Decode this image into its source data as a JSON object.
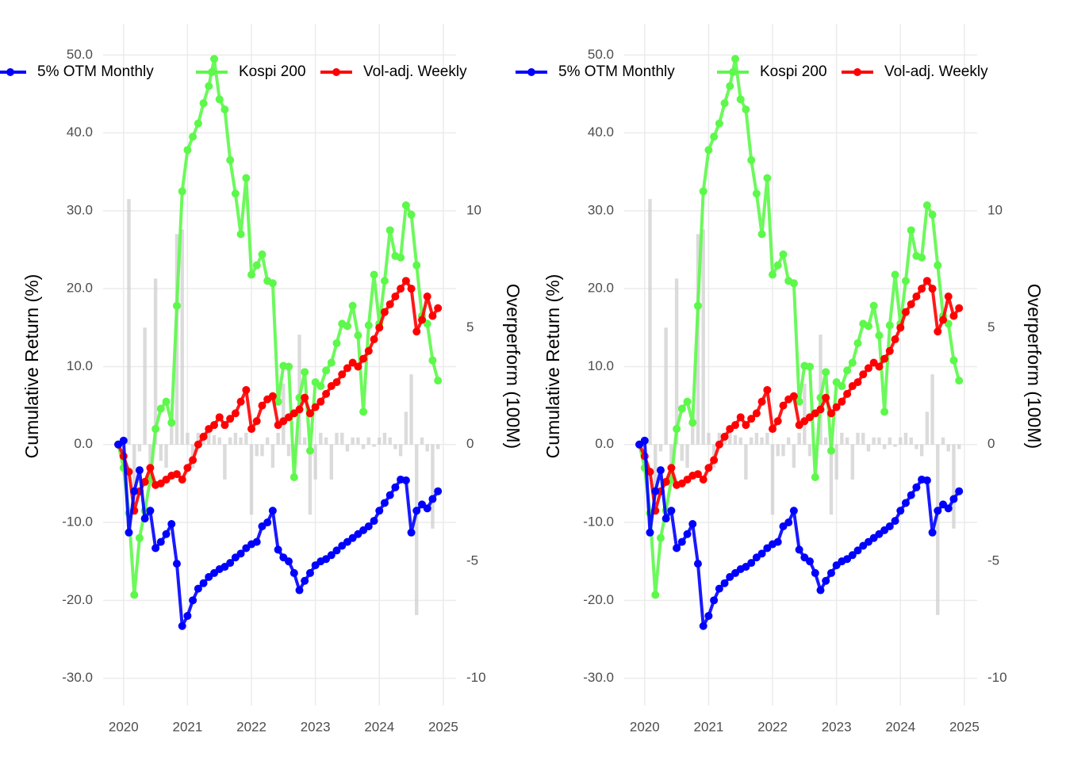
{
  "chart_data": [
    {
      "type": "line",
      "y_label": "Cumulative Return (%)",
      "y2_label": "Overperform (100M)",
      "x": [
        2019.917,
        2020.0,
        2020.083,
        2020.167,
        2020.25,
        2020.333,
        2020.417,
        2020.5,
        2020.583,
        2020.667,
        2020.75,
        2020.833,
        2020.917,
        2021.0,
        2021.083,
        2021.167,
        2021.25,
        2021.333,
        2021.417,
        2021.5,
        2021.583,
        2021.667,
        2021.75,
        2021.833,
        2021.917,
        2022.0,
        2022.083,
        2022.167,
        2022.25,
        2022.333,
        2022.417,
        2022.5,
        2022.583,
        2022.667,
        2022.75,
        2022.833,
        2022.917,
        2023.0,
        2023.083,
        2023.167,
        2023.25,
        2023.333,
        2023.417,
        2023.5,
        2023.583,
        2023.667,
        2023.75,
        2023.833,
        2023.917,
        2024.0,
        2024.083,
        2024.167,
        2024.25,
        2024.333,
        2024.417,
        2024.5,
        2024.583,
        2024.667,
        2024.75,
        2024.833,
        2024.917
      ],
      "series": [
        {
          "name": "5% OTM Monthly",
          "color": "#0000ff",
          "values": [
            0,
            0.5,
            -11.3,
            -6,
            -3.3,
            -9.5,
            -8.5,
            -13.3,
            -12.5,
            -11.5,
            -10.2,
            -15.3,
            -23.3,
            -22,
            -20,
            -18.5,
            -17.8,
            -17,
            -16.5,
            -16,
            -15.7,
            -15.2,
            -14.5,
            -14,
            -13.3,
            -12.8,
            -12.5,
            -10.5,
            -10,
            -8.5,
            -13.5,
            -14.5,
            -15,
            -16.5,
            -18.7,
            -17.5,
            -16.5,
            -15.5,
            -15,
            -14.7,
            -14.2,
            -13.6,
            -13,
            -12.5,
            -12,
            -11.5,
            -11,
            -10.5,
            -9.8,
            -8.5,
            -7.5,
            -6.5,
            -5.5,
            -4.5,
            -4.6,
            -11.3,
            -8.5,
            -7.7,
            -8.2,
            -7,
            -6
          ]
        },
        {
          "name": "Kospi 200",
          "color": "#5cf84a",
          "values": [
            0,
            -3,
            -8.8,
            -19.3,
            -12,
            -8.5,
            -4.5,
            2,
            4.6,
            5.5,
            2.8,
            17.8,
            32.5,
            37.8,
            39.5,
            41.2,
            43.8,
            46,
            49.5,
            44.3,
            43,
            36.5,
            32.2,
            27,
            34.2,
            21.8,
            23,
            24.4,
            21,
            20.7,
            5.5,
            10.1,
            10,
            -4.2,
            6,
            9.3,
            -0.8,
            8,
            7.5,
            9.5,
            10.5,
            13,
            15.5,
            15.2,
            17.8,
            14,
            4.2,
            15.3,
            21.8,
            15.5,
            21,
            27.5,
            24.2,
            24,
            30.7,
            29.5,
            23,
            16.5,
            15.5,
            10.8,
            8.2
          ]
        },
        {
          "name": "Vol-adj. Weekly",
          "color": "#ff0000",
          "values": [
            0,
            -1.5,
            -3.5,
            -8.5,
            -6,
            -4.8,
            -3,
            -5.2,
            -5,
            -4.5,
            -4,
            -3.8,
            -4.5,
            -3,
            -2,
            0,
            1,
            2,
            2.5,
            3.5,
            2.5,
            3.3,
            4,
            5.5,
            7,
            2,
            3,
            5,
            5.8,
            6.2,
            2.5,
            3,
            3.5,
            4,
            4.5,
            6,
            4,
            4.8,
            5.5,
            6.5,
            7.5,
            8,
            9,
            9.8,
            10.5,
            10,
            11,
            12,
            13.5,
            15,
            17,
            18,
            19,
            20,
            21,
            20,
            14.5,
            16,
            19,
            16.5,
            17.5
          ]
        }
      ],
      "bar_values": [
        0,
        0,
        10.5,
        -2,
        -0.3,
        5,
        -1,
        7.1,
        -0.7,
        -1,
        1,
        9,
        9.2,
        0.5,
        -1,
        0.5,
        0.3,
        0.5,
        0.4,
        0.3,
        -1.5,
        0.3,
        0.5,
        0.3,
        0.5,
        -3,
        -0.5,
        -0.5,
        0.3,
        -1,
        0.5,
        2.6,
        -0.5,
        -0.8,
        4.7,
        0.3,
        -3,
        -1.5,
        0.5,
        0.3,
        -1.5,
        0.5,
        0.5,
        -0.3,
        0.3,
        0.3,
        -0.2,
        0.3,
        -0.1,
        0.3,
        0.5,
        0.3,
        -0.2,
        -0.5,
        1.4,
        3,
        -7.3,
        0.3,
        -0.3,
        -3.6,
        -0.2
      ],
      "bar_color": "#cfcfcf",
      "bar_axis": "y2",
      "xlim": [
        2019.68,
        2025.2
      ],
      "xticks": [
        2020,
        2021,
        2022,
        2023,
        2024,
        2025
      ],
      "ylim": [
        -33.5,
        54
      ],
      "yticks": [
        {
          "value": 50,
          "label": "50.0"
        },
        {
          "value": 40,
          "label": "40.0"
        },
        {
          "value": 30,
          "label": "30.0"
        },
        {
          "value": 20,
          "label": "20.0"
        },
        {
          "value": 10,
          "label": "10.0"
        },
        {
          "value": 0,
          "label": "0.0"
        },
        {
          "value": -10,
          "label": "-10.0"
        },
        {
          "value": -20,
          "label": "-20.0"
        },
        {
          "value": -30,
          "label": "-30.0"
        }
      ],
      "y2lim": [
        -11.17,
        18
      ],
      "y2ticks": [
        10,
        5,
        0,
        -5,
        -10
      ],
      "grid": true,
      "legend": "top"
    },
    {
      "type": "line",
      "y_label": "Cumulative Return (%)",
      "y2_label": "Overperform (100M)",
      "x": [
        2019.917,
        2020.0,
        2020.083,
        2020.167,
        2020.25,
        2020.333,
        2020.417,
        2020.5,
        2020.583,
        2020.667,
        2020.75,
        2020.833,
        2020.917,
        2021.0,
        2021.083,
        2021.167,
        2021.25,
        2021.333,
        2021.417,
        2021.5,
        2021.583,
        2021.667,
        2021.75,
        2021.833,
        2021.917,
        2022.0,
        2022.083,
        2022.167,
        2022.25,
        2022.333,
        2022.417,
        2022.5,
        2022.583,
        2022.667,
        2022.75,
        2022.833,
        2022.917,
        2023.0,
        2023.083,
        2023.167,
        2023.25,
        2023.333,
        2023.417,
        2023.5,
        2023.583,
        2023.667,
        2023.75,
        2023.833,
        2023.917,
        2024.0,
        2024.083,
        2024.167,
        2024.25,
        2024.333,
        2024.417,
        2024.5,
        2024.583,
        2024.667,
        2024.75,
        2024.833,
        2024.917
      ],
      "series": [
        {
          "name": "5% OTM Monthly",
          "color": "#0000ff",
          "values": [
            0,
            0.5,
            -11.3,
            -6,
            -3.3,
            -9.5,
            -8.5,
            -13.3,
            -12.5,
            -11.5,
            -10.2,
            -15.3,
            -23.3,
            -22,
            -20,
            -18.5,
            -17.8,
            -17,
            -16.5,
            -16,
            -15.7,
            -15.2,
            -14.5,
            -14,
            -13.3,
            -12.8,
            -12.5,
            -10.5,
            -10,
            -8.5,
            -13.5,
            -14.5,
            -15,
            -16.5,
            -18.7,
            -17.5,
            -16.5,
            -15.5,
            -15,
            -14.7,
            -14.2,
            -13.6,
            -13,
            -12.5,
            -12,
            -11.5,
            -11,
            -10.5,
            -9.8,
            -8.5,
            -7.5,
            -6.5,
            -5.5,
            -4.5,
            -4.6,
            -11.3,
            -8.5,
            -7.7,
            -8.2,
            -7,
            -6
          ]
        },
        {
          "name": "Kospi 200",
          "color": "#5cf84a",
          "values": [
            0,
            -3,
            -8.8,
            -19.3,
            -12,
            -8.5,
            -4.5,
            2,
            4.6,
            5.5,
            2.8,
            17.8,
            32.5,
            37.8,
            39.5,
            41.2,
            43.8,
            46,
            49.5,
            44.3,
            43,
            36.5,
            32.2,
            27,
            34.2,
            21.8,
            23,
            24.4,
            21,
            20.7,
            5.5,
            10.1,
            10,
            -4.2,
            6,
            9.3,
            -0.8,
            8,
            7.5,
            9.5,
            10.5,
            13,
            15.5,
            15.2,
            17.8,
            14,
            4.2,
            15.3,
            21.8,
            15.5,
            21,
            27.5,
            24.2,
            24,
            30.7,
            29.5,
            23,
            16.5,
            15.5,
            10.8,
            8.2
          ]
        },
        {
          "name": "Vol-adj. Weekly",
          "color": "#ff0000",
          "values": [
            0,
            -1.5,
            -3.5,
            -8.5,
            -6,
            -4.8,
            -3,
            -5.2,
            -5,
            -4.5,
            -4,
            -3.8,
            -4.5,
            -3,
            -2,
            0,
            1,
            2,
            2.5,
            3.5,
            2.5,
            3.3,
            4,
            5.5,
            7,
            2,
            3,
            5,
            5.8,
            6.2,
            2.5,
            3,
            3.5,
            4,
            4.5,
            6,
            4,
            4.8,
            5.5,
            6.5,
            7.5,
            8,
            9,
            9.8,
            10.5,
            10,
            11,
            12,
            13.5,
            15,
            17,
            18,
            19,
            20,
            21,
            20,
            14.5,
            16,
            19,
            16.5,
            17.5
          ]
        }
      ],
      "bar_values": [
        0,
        0,
        10.5,
        -2,
        -0.3,
        5,
        -1,
        7.1,
        -0.7,
        -1,
        1,
        9,
        9.2,
        0.5,
        -1,
        0.5,
        0.3,
        0.5,
        0.4,
        0.3,
        -1.5,
        0.3,
        0.5,
        0.3,
        0.5,
        -3,
        -0.5,
        -0.5,
        0.3,
        -1,
        0.5,
        2.6,
        -0.5,
        -0.8,
        4.7,
        0.3,
        -3,
        -1.5,
        0.5,
        0.3,
        -1.5,
        0.5,
        0.5,
        -0.3,
        0.3,
        0.3,
        -0.2,
        0.3,
        -0.1,
        0.3,
        0.5,
        0.3,
        -0.2,
        -0.5,
        1.4,
        3,
        -7.3,
        0.3,
        -0.3,
        -3.6,
        -0.2
      ],
      "bar_color": "#cfcfcf",
      "bar_axis": "y2",
      "xlim": [
        2019.68,
        2025.2
      ],
      "xticks": [
        2020,
        2021,
        2022,
        2023,
        2024,
        2025
      ],
      "ylim": [
        -33.5,
        54
      ],
      "yticks": [
        {
          "value": 50,
          "label": "50.0"
        },
        {
          "value": 40,
          "label": "40.0"
        },
        {
          "value": 30,
          "label": "30.0"
        },
        {
          "value": 20,
          "label": "20.0"
        },
        {
          "value": 10,
          "label": "10.0"
        },
        {
          "value": 0,
          "label": "0.0"
        },
        {
          "value": -10,
          "label": "-10.0"
        },
        {
          "value": -20,
          "label": "-20.0"
        },
        {
          "value": -30,
          "label": "-30.0"
        }
      ],
      "y2lim": [
        -11.17,
        18
      ],
      "y2ticks": [
        10,
        5,
        0,
        -5,
        -10
      ],
      "grid": true,
      "legend": "top"
    }
  ]
}
